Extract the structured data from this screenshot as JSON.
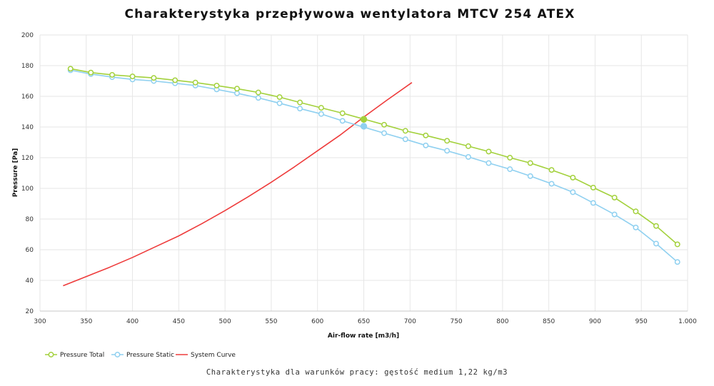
{
  "chart_data": {
    "type": "line",
    "title": "Charakterystyka przepływowa wentylatora MTCV 254 ATEX",
    "subtitle": "Charakterystyka dla warunków pracy: gęstość medium 1,22 kg/m3",
    "xlabel": "Air-flow rate [m3/h]",
    "ylabel": "Pressure [Pa]",
    "xlim": [
      300,
      1000
    ],
    "ylim": [
      20,
      200
    ],
    "x_ticks": [
      300,
      350,
      400,
      450,
      500,
      550,
      600,
      650,
      700,
      750,
      800,
      850,
      900,
      950,
      1000
    ],
    "x_tick_labels": [
      "300",
      "350",
      "400",
      "450",
      "500",
      "550",
      "600",
      "650",
      "700",
      "750",
      "800",
      "850",
      "900",
      "950",
      "1.000"
    ],
    "y_ticks": [
      20,
      40,
      60,
      80,
      100,
      120,
      140,
      160,
      180,
      200
    ],
    "grid": true,
    "legend_position": "bottom-left",
    "series": [
      {
        "name": "Pressure Total",
        "color": "#a3d13c",
        "marker": "circle-open",
        "x": [
          333,
          355,
          378,
          400,
          423,
          446,
          468,
          491,
          513,
          536,
          559,
          581,
          604,
          627,
          672,
          695,
          717,
          740,
          763,
          785,
          808,
          830,
          853,
          876,
          898,
          921,
          944,
          966,
          989
        ],
        "y": [
          178,
          175.5,
          174,
          173,
          172,
          170.5,
          169,
          167,
          165,
          162.5,
          159.5,
          156,
          152.5,
          149,
          141.5,
          137.5,
          134.5,
          131,
          127.5,
          124,
          120,
          116.5,
          112,
          107,
          100.5,
          94,
          85,
          75.5,
          63.5
        ]
      },
      {
        "name": "Pressure Static",
        "color": "#8fd0f0",
        "marker": "circle-open",
        "x": [
          333,
          355,
          378,
          400,
          423,
          446,
          468,
          491,
          513,
          536,
          559,
          581,
          604,
          627,
          672,
          695,
          717,
          740,
          763,
          785,
          808,
          830,
          853,
          876,
          898,
          921,
          944,
          966,
          989
        ],
        "y": [
          177,
          174.5,
          172.5,
          171,
          170,
          168.5,
          167,
          164.5,
          162,
          159,
          155.5,
          152,
          148.5,
          144,
          136,
          132,
          128,
          124.5,
          120.5,
          116.5,
          112.5,
          108,
          103,
          97.5,
          90.5,
          83,
          74.5,
          64,
          52
        ]
      },
      {
        "name": "System Curve",
        "color": "#ee3b3b",
        "marker": "none",
        "x": [
          325,
          350,
          375,
          400,
          425,
          450,
          475,
          500,
          525,
          550,
          575,
          600,
          625,
          650,
          675,
          702
        ],
        "y": [
          36.5,
          42.5,
          48.5,
          55,
          62,
          69,
          77,
          85.5,
          94.5,
          104,
          114,
          124.5,
          135,
          146.5,
          157.5,
          169
        ]
      }
    ],
    "operating_points": [
      {
        "series": "Pressure Total",
        "x": 650,
        "y": 145,
        "color": "#a3d13c"
      },
      {
        "series": "Pressure Static",
        "x": 650,
        "y": 140.5,
        "color": "#8fd0f0"
      }
    ]
  }
}
